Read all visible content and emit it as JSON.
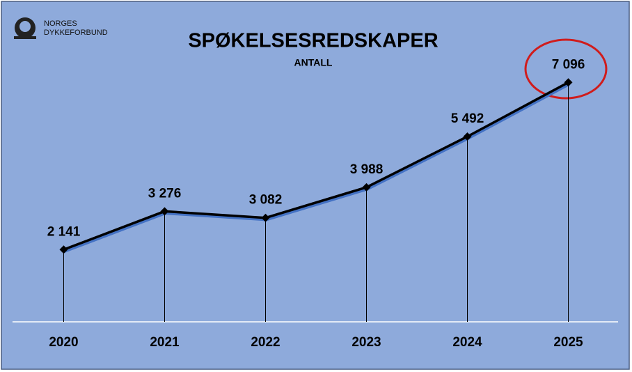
{
  "logo": {
    "lines": [
      "NORGES",
      "DYKKEFORBUND"
    ]
  },
  "chart_data": {
    "type": "line",
    "title": "SPØKELSESREDSKAPER",
    "subtitle": "ANTALL",
    "categories": [
      "2020",
      "2021",
      "2022",
      "2023",
      "2024",
      "2025"
    ],
    "values": [
      2141,
      3276,
      3082,
      3988,
      5492,
      7096
    ],
    "value_labels": [
      "2 141",
      "3 276",
      "3 082",
      "3 988",
      "5 492",
      "7 096"
    ],
    "color": "#000000",
    "ylim": [
      0,
      8000
    ]
  }
}
